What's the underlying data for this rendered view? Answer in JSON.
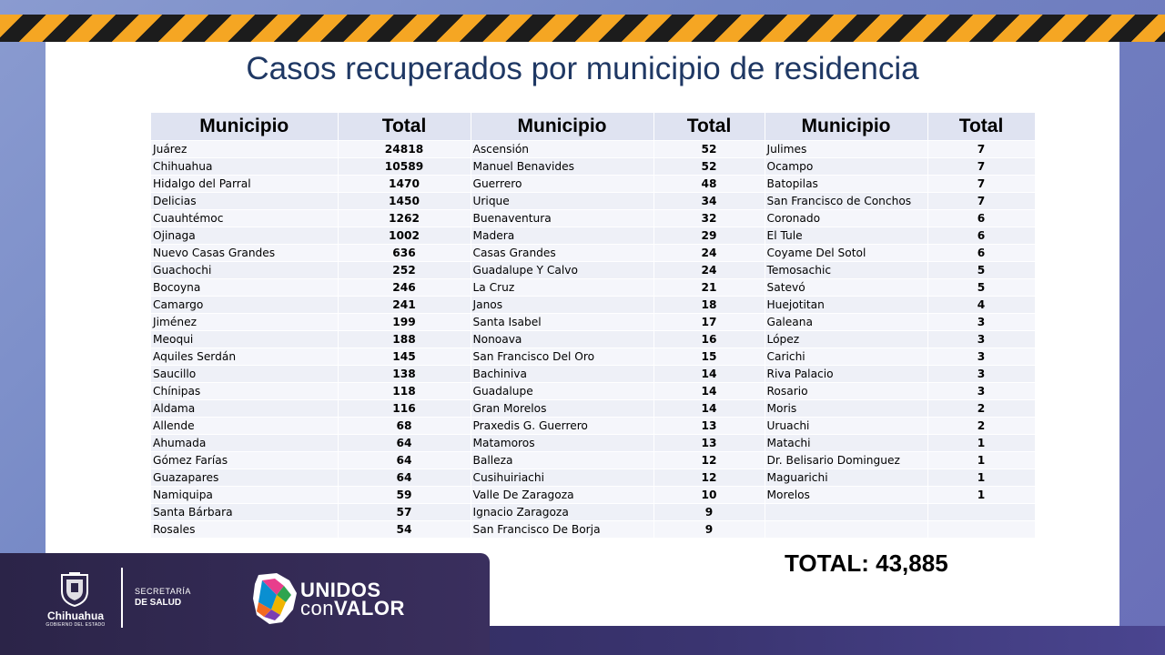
{
  "title": "Casos recuperados por municipio de residencia",
  "table": {
    "headers": [
      "Municipio",
      "Total",
      "Municipio",
      "Total",
      "Municipio",
      "Total"
    ],
    "rows": [
      [
        "Juárez",
        "24818",
        "Ascensión",
        "52",
        "Julimes",
        "7"
      ],
      [
        "Chihuahua",
        "10589",
        "Manuel Benavides",
        "52",
        "Ocampo",
        "7"
      ],
      [
        "Hidalgo del Parral",
        "1470",
        "Guerrero",
        "48",
        "Batopilas",
        "7"
      ],
      [
        "Delicias",
        "1450",
        "Urique",
        "34",
        "San Francisco de Conchos",
        "7"
      ],
      [
        "Cuauhtémoc",
        "1262",
        "Buenaventura",
        "32",
        "Coronado",
        "6"
      ],
      [
        "Ojinaga",
        "1002",
        "Madera",
        "29",
        "El Tule",
        "6"
      ],
      [
        "Nuevo Casas Grandes",
        "636",
        "Casas Grandes",
        "24",
        "Coyame Del Sotol",
        "6"
      ],
      [
        "Guachochi",
        "252",
        "Guadalupe Y Calvo",
        "24",
        "Temosachic",
        "5"
      ],
      [
        "Bocoyna",
        "246",
        "La Cruz",
        "21",
        "Satevó",
        "5"
      ],
      [
        "Camargo",
        "241",
        "Janos",
        "18",
        "Huejotitan",
        "4"
      ],
      [
        "Jiménez",
        "199",
        "Santa Isabel",
        "17",
        "Galeana",
        "3"
      ],
      [
        "Meoqui",
        "188",
        "Nonoava",
        "16",
        "López",
        "3"
      ],
      [
        "Aquiles Serdán",
        "145",
        "San Francisco Del Oro",
        "15",
        "Carichi",
        "3"
      ],
      [
        "Saucillo",
        "138",
        "Bachiniva",
        "14",
        "Riva Palacio",
        "3"
      ],
      [
        "Chínipas",
        "118",
        "Guadalupe",
        "14",
        "Rosario",
        "3"
      ],
      [
        "Aldama",
        "116",
        "Gran Morelos",
        "14",
        "Moris",
        "2"
      ],
      [
        "Allende",
        "68",
        "Praxedis G. Guerrero",
        "13",
        "Uruachi",
        "2"
      ],
      [
        "Ahumada",
        "64",
        "Matamoros",
        "13",
        "Matachi",
        "1"
      ],
      [
        "Gómez Farías",
        "64",
        "Balleza",
        "12",
        "Dr. Belisario Dominguez",
        "1"
      ],
      [
        "Guazapares",
        "64",
        "Cusihuiriachi",
        "12",
        "Maguarichi",
        "1"
      ],
      [
        "Namiquipa",
        "59",
        "Valle De Zaragoza",
        "10",
        "Morelos",
        "1"
      ],
      [
        "Santa Bárbara",
        "57",
        "Ignacio Zaragoza",
        "9",
        "",
        ""
      ],
      [
        "Rosales",
        "54",
        "San Francisco De Borja",
        "9",
        "",
        ""
      ]
    ]
  },
  "total_label": "TOTAL: 43,885",
  "footer": {
    "logo_city": "Chihuahua",
    "logo_gov": "GOBIERNO DEL ESTADO",
    "secretaria_line1": "SECRETARÍA",
    "secretaria_line2": "DE SALUD",
    "campaign_line1": "UNIDOS",
    "campaign_line2_a": "con",
    "campaign_line2_b": "VALOR"
  },
  "colors": {
    "title": "#1f3864",
    "header_bg": "#dfe3f1",
    "hazard_yellow": "#f5a623",
    "footer_panel": "#2b2448"
  }
}
